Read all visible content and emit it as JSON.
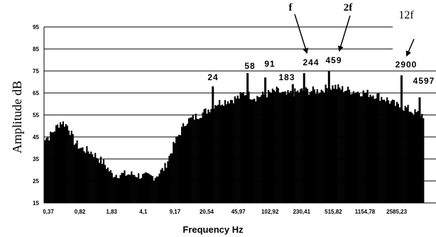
{
  "chart_data": {
    "type": "bar",
    "title": "",
    "xlabel": "Frequency  Hz",
    "ylabel": "Amplitude dB",
    "ylim": [
      15,
      95
    ],
    "y_ticks": [
      15,
      25,
      35,
      45,
      55,
      65,
      75,
      85,
      95
    ],
    "x_tick_labels": [
      "0,37",
      "0,82",
      "1,83",
      "4,1",
      "9,17",
      "20,54",
      "45,97",
      "102,92",
      "230,41",
      "515,82",
      "1154,78",
      "2585,23"
    ],
    "grid": "horizontal",
    "peak_labels": [
      {
        "text": "24",
        "frequency": 24,
        "amplitude": 68
      },
      {
        "text": "58",
        "frequency": 58,
        "amplitude": 74
      },
      {
        "text": "91",
        "frequency": 91,
        "amplitude": 72
      },
      {
        "text": "183",
        "frequency": 183,
        "amplitude": 69
      },
      {
        "text": "244",
        "frequency": 244,
        "amplitude": 74
      },
      {
        "text": "459",
        "frequency": 459,
        "amplitude": 75
      },
      {
        "text": "2900",
        "frequency": 2900,
        "amplitude": 73
      },
      {
        "text": "4597",
        "frequency": 4597,
        "amplitude": 63
      }
    ],
    "annotations": [
      {
        "text": "f",
        "points_to": "244"
      },
      {
        "text": "2f",
        "points_to": "459"
      },
      {
        "text": "12f",
        "points_to": "2900"
      }
    ],
    "envelope": {
      "frequency": [
        0.3,
        0.37,
        0.5,
        0.6,
        0.7,
        0.82,
        1.1,
        1.5,
        1.83,
        2.5,
        3.2,
        4.1,
        5.5,
        7.0,
        9.17,
        12,
        15,
        20.54,
        25,
        30,
        38,
        45.97,
        52,
        60,
        70,
        85,
        102.92,
        120,
        150,
        183,
        230.41,
        280,
        350,
        420,
        515.82,
        600,
        800,
        1154.78,
        1500,
        2000,
        2585.23,
        3300,
        4000,
        5000
      ],
      "amplitude": [
        44,
        45,
        52,
        50,
        43,
        40,
        38,
        33,
        28,
        28,
        28,
        27,
        27,
        31,
        43,
        52,
        54,
        57,
        60,
        61,
        62,
        63,
        65,
        64,
        63,
        64,
        65,
        66,
        64,
        65,
        66,
        66,
        66,
        67,
        68,
        67,
        66,
        65,
        64,
        62,
        59,
        58,
        56,
        55
      ]
    }
  }
}
